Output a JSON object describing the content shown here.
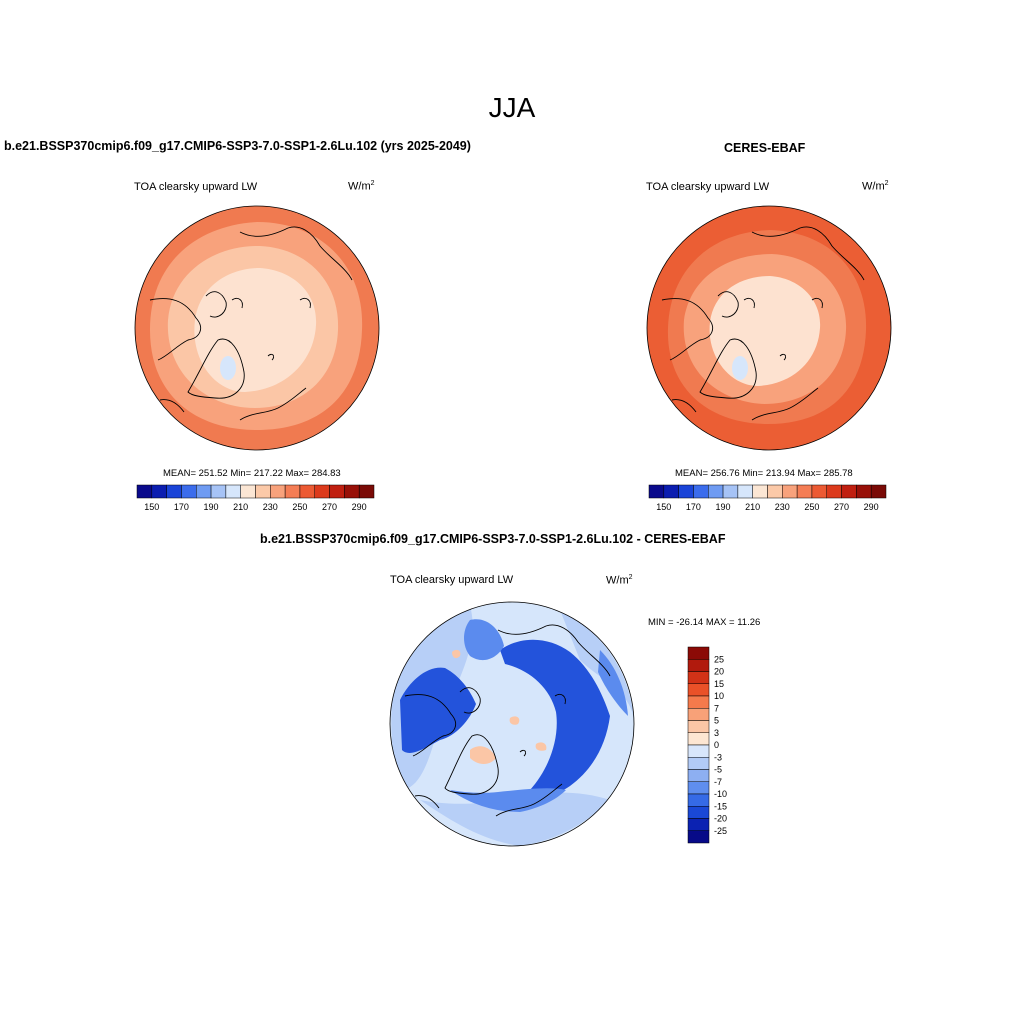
{
  "page": {
    "title": "JJA"
  },
  "panels": [
    {
      "id": "model",
      "case_title": "b.e21.BSSP370cmip6.f09_g17.CMIP6-SSP3-7.0-SSP1-2.6Lu.102 (yrs 2025-2049)",
      "variable": "TOA clearsky upward LW",
      "units_base": "W/m",
      "units_exp": "2",
      "stats": "MEAN= 251.52  Min= 217.22  Max= 284.83"
    },
    {
      "id": "obs",
      "case_title": "CERES-EBAF",
      "variable": "TOA clearsky upward LW",
      "units_base": "W/m",
      "units_exp": "2",
      "stats": "MEAN= 256.76  Min= 213.94  Max= 285.78"
    }
  ],
  "diff": {
    "case_title": "b.e21.BSSP370cmip6.f09_g17.CMIP6-SSP3-7.0-SSP1-2.6Lu.102 - CERES-EBAF",
    "variable": "TOA clearsky upward LW",
    "units_base": "W/m",
    "units_exp": "2",
    "stats": "MIN = -26.14 MAX =  11.26"
  },
  "colorbar_abs": {
    "tick_labels": [
      "150",
      "170",
      "190",
      "210",
      "230",
      "250",
      "270",
      "290"
    ],
    "colors": [
      "#0a0a8c",
      "#0b1db0",
      "#1a44d8",
      "#3b6cec",
      "#6f9bf2",
      "#a6c3f6",
      "#d6e6fb",
      "#fbe6d4",
      "#fbc9a8",
      "#f8a27c",
      "#f47d55",
      "#ec5a33",
      "#dc3a1c",
      "#c01f10",
      "#981008",
      "#7a0a06"
    ]
  },
  "colorbar_diff": {
    "tick_labels": [
      "25",
      "20",
      "15",
      "10",
      "7",
      "5",
      "3",
      "0",
      "-3",
      "-5",
      "-7",
      "-10",
      "-15",
      "-20",
      "-25"
    ],
    "colors": [
      "#8b0a06",
      "#b11a0d",
      "#d23217",
      "#ea5128",
      "#f57a4c",
      "#f8a178",
      "#fbc6a6",
      "#fde6d2",
      "#d8e6fb",
      "#b2cbf7",
      "#8daff2",
      "#5f8eee",
      "#356ae6",
      "#1a48d6",
      "#0b22b2",
      "#070a88"
    ]
  },
  "map_colors": {
    "abs_inner": "#fde2d0",
    "abs_ring1": "#fbc6a6",
    "abs_ring2": "#f8a27c",
    "abs_outer": "#f07a50",
    "abs_outer_obs": "#eb5e34",
    "abs_ice": "#d6e6fb",
    "diff_base": "#d6e6fb",
    "diff_light": "#b7cff7",
    "diff_mid": "#5b8bee",
    "diff_dark": "#2353db",
    "diff_warm": "#fbc6a6"
  }
}
